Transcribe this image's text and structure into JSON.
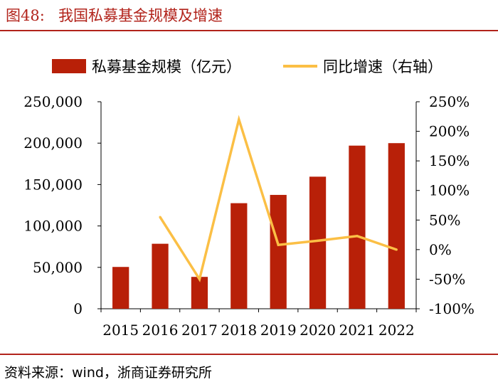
{
  "figure": {
    "number": "图48:",
    "title": "我国私募基金规模及增速"
  },
  "chart_data": {
    "type": "bar+line",
    "title": "我国私募基金规模及增速",
    "categories": [
      "2015",
      "2016",
      "2017",
      "2018",
      "2019",
      "2020",
      "2021",
      "2022"
    ],
    "series": [
      {
        "name": "私募基金规模（亿元）",
        "type": "bar",
        "axis": "left",
        "color": "#b82008",
        "values": [
          50500,
          78500,
          38500,
          127500,
          137500,
          159500,
          197000,
          200000
        ]
      },
      {
        "name": "同比增速（右轴）",
        "type": "line",
        "axis": "right",
        "color": "#fbbf45",
        "values": [
          null,
          55,
          -50,
          220,
          8,
          15,
          23,
          0
        ]
      }
    ],
    "y_left": {
      "min": 0,
      "max": 250000,
      "step": 50000,
      "ticks": [
        "0",
        "50,000",
        "100,000",
        "150,000",
        "200,000",
        "250,000"
      ]
    },
    "y_right": {
      "min": -100,
      "max": 250,
      "step": 50,
      "ticks": [
        "-100%",
        "-50%",
        "0%",
        "50%",
        "100%",
        "150%",
        "200%",
        "250%"
      ]
    },
    "legend_position": "top",
    "grid": false
  },
  "source": "资料来源：wind，浙商证券研究所"
}
